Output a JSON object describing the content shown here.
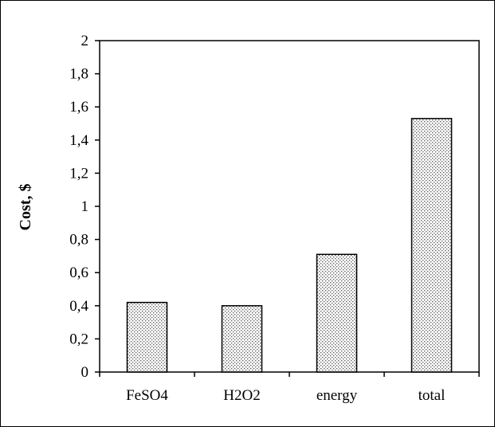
{
  "chart_data": {
    "type": "bar",
    "categories": [
      "FeSO4",
      "H2O2",
      "energy",
      "total"
    ],
    "values": [
      0.42,
      0.4,
      0.71,
      1.53
    ],
    "title": "",
    "xlabel": "",
    "ylabel": "Cost, $",
    "ylim": [
      0,
      2
    ],
    "yticks": [
      "0",
      "0,2",
      "0,4",
      "0,6",
      "0,8",
      "1",
      "1,2",
      "1,4",
      "1,6",
      "1,8",
      "2"
    ],
    "grid": false,
    "legend": "none",
    "bar_fill": "dotted",
    "colors": {
      "bar_fill_background": "#ffffff",
      "bar_dots": "#555555",
      "axis": "#000000"
    }
  }
}
